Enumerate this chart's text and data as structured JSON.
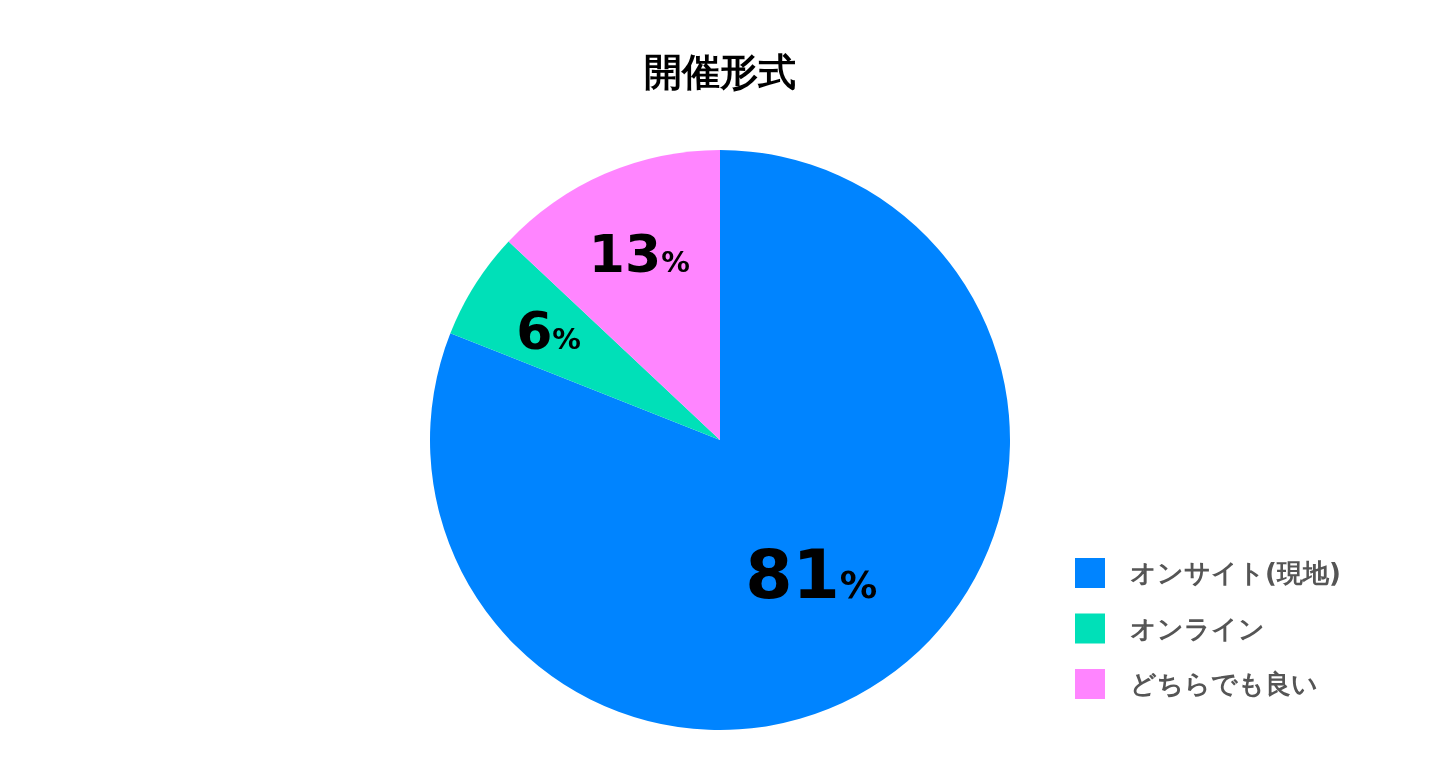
{
  "chart_data": {
    "type": "pie",
    "title": "開催形式",
    "categories": [
      "オンサイト(現地)",
      "オンライン",
      "どちらでも良い"
    ],
    "values": [
      81,
      6,
      13
    ],
    "colors": [
      "#0084ff",
      "#00e0b8",
      "#ff85ff"
    ],
    "value_labels": [
      "81%",
      "6%",
      "13%"
    ],
    "legend": "bottom right"
  }
}
